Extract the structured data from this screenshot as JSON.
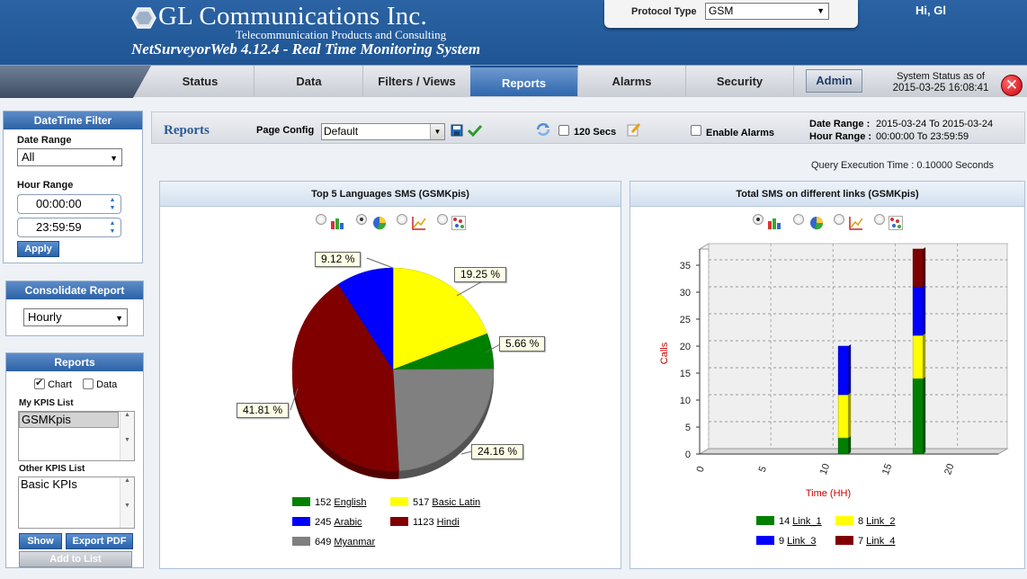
{
  "header": {
    "company": "GL Communications Inc.",
    "tagline": "Telecommunication Products and Consulting",
    "product": "NetSurveyorWeb 4.12.4 - Real Time Monitoring System",
    "protocol_label": "Protocol Type",
    "protocol_value": "GSM",
    "greeting": "Hi, Gl"
  },
  "nav": {
    "tabs": [
      "Status",
      "Data",
      "Filters / Views",
      "Reports",
      "Alarms",
      "Security"
    ],
    "active": "Reports",
    "admin": "Admin",
    "status_line1": "System Status as of",
    "status_line2": "2015-03-25 16:08:41"
  },
  "datetime_filter": {
    "title": "DateTime Filter",
    "date_range_label": "Date Range",
    "date_range_value": "All",
    "hour_range_label": "Hour Range",
    "hour_from": "00:00:00",
    "hour_to": "23:59:59",
    "apply": "Apply"
  },
  "consolidate": {
    "title": "Consolidate Report",
    "value": "Hourly"
  },
  "reports_panel": {
    "title": "Reports",
    "chart_label": "Chart",
    "data_label": "Data",
    "my_kpis_label": "My KPIS List",
    "my_kpis": [
      "GSMKpis"
    ],
    "other_kpis_label": "Other KPIS List",
    "other_kpis": [
      "Basic KPIs"
    ],
    "show": "Show",
    "export": "Export PDF",
    "add": "Add to List"
  },
  "main": {
    "title": "Reports",
    "page_config_label": "Page Config",
    "page_config_value": "Default",
    "refresh_label": "120 Secs",
    "enable_alarms": "Enable Alarms",
    "date_range_label": "Date Range :",
    "date_range_value": "2015-03-24 To 2015-03-24",
    "hour_range_label": "Hour Range :",
    "hour_range_value": "00:00:00 To 23:59:59",
    "query_label": "Query Execution Time :",
    "query_value": "0.10000 Seconds"
  },
  "colors": {
    "accent": "#2a5a94",
    "green": "#008000",
    "yellow": "#ffff00",
    "blue": "#0000ff",
    "maroon": "#800000",
    "gray": "#808080"
  },
  "chart_data": [
    {
      "type": "pie",
      "title": "Top 5 Languages SMS (GSMKpis)",
      "slices": [
        {
          "name": "English",
          "value": 152,
          "pct": "5.66 %",
          "color": "#008000"
        },
        {
          "name": "Basic Latin",
          "value": 517,
          "pct": "19.25 %",
          "color": "#ffff00"
        },
        {
          "name": "Arabic",
          "value": 245,
          "pct": "9.12 %",
          "color": "#0000ff"
        },
        {
          "name": "Hindi",
          "value": 1123,
          "pct": "41.81 %",
          "color": "#800000"
        },
        {
          "name": "Myanmar",
          "value": 649,
          "pct": "24.16 %",
          "color": "#808080"
        }
      ],
      "legend_order": [
        "English",
        "Basic Latin",
        "Arabic",
        "Hindi",
        "Myanmar"
      ]
    },
    {
      "type": "bar",
      "stacked": true,
      "title": "Total SMS on different links (GSMKpis)",
      "xlabel": "Time (HH)",
      "ylabel": "Calls",
      "xlim": [
        0,
        24
      ],
      "ylim": [
        0,
        38
      ],
      "xticks": [
        0,
        5,
        10,
        15,
        20
      ],
      "yticks": [
        0,
        5,
        10,
        15,
        20,
        25,
        30,
        35
      ],
      "x": [
        11,
        17
      ],
      "series": [
        {
          "name": "Link_1",
          "values": [
            3,
            14
          ],
          "total": 14,
          "color": "#008000"
        },
        {
          "name": "Link_2",
          "values": [
            8,
            8
          ],
          "total": 8,
          "color": "#ffff00"
        },
        {
          "name": "Link_3",
          "values": [
            9,
            9
          ],
          "total": 9,
          "color": "#0000ff"
        },
        {
          "name": "Link_4",
          "values": [
            0,
            7
          ],
          "total": 7,
          "color": "#800000"
        }
      ]
    }
  ]
}
